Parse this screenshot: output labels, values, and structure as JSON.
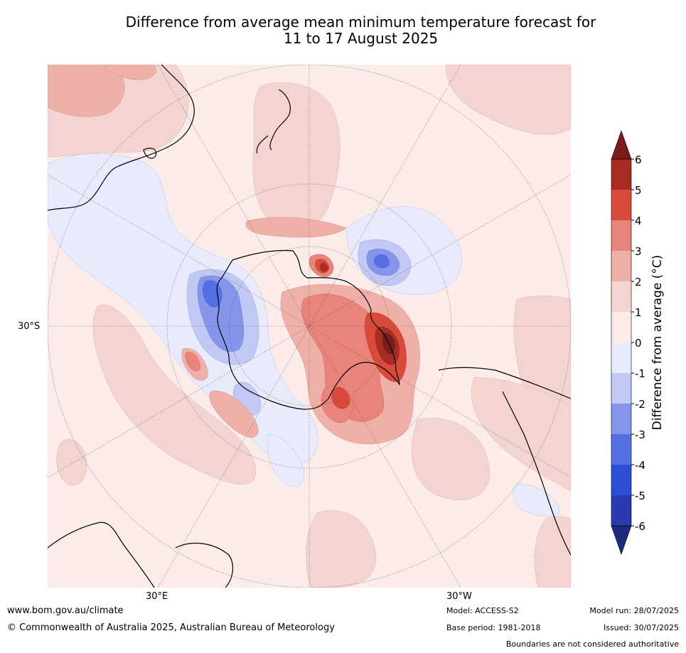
{
  "title": {
    "line1": "Difference from average mean minimum temperature forecast for",
    "line2": "11 to 17 August 2025"
  },
  "map": {
    "labels": {
      "lat_30s": "30°S",
      "lon_30e": "30°E",
      "lon_30w": "30°W"
    },
    "projection": "south-polar-stereographic"
  },
  "colorbar": {
    "label": "Difference from average (°C)",
    "ticks": [
      "6",
      "5",
      "4",
      "3",
      "2",
      "1",
      "0",
      "-1",
      "-2",
      "-3",
      "-4",
      "-5",
      "-6"
    ],
    "colors": [
      "#7a1c1a",
      "#a82c24",
      "#d94a3b",
      "#e8847a",
      "#efb0a9",
      "#f4d4d1",
      "#fbecea",
      "#e8ebfb",
      "#c0c8f3",
      "#8596ea",
      "#5570e2",
      "#2f4ed8",
      "#2a3bb0",
      "#1c2a80"
    ]
  },
  "footer": {
    "url": "www.bom.gov.au/climate",
    "copyright": "© Commonwealth of Australia 2025, Australian Bureau of Meteorology",
    "model": "Model: ACCESS-S2",
    "base_period": "Base period: 1981-2018",
    "model_run": "Model run: 28/07/2025",
    "issued": "Issued: 30/07/2025",
    "disclaimer": "Boundaries are not considered authoritative"
  }
}
